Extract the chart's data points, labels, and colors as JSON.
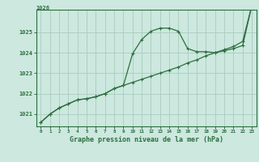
{
  "bg_color": "#cce8df",
  "grid_color": "#aaccbf",
  "line_color": "#2d6e3e",
  "title": "Graphe pression niveau de la mer (hPa)",
  "hours": [
    0,
    1,
    2,
    3,
    4,
    5,
    6,
    7,
    8,
    9,
    10,
    11,
    12,
    13,
    14,
    15,
    16,
    17,
    18,
    19,
    20,
    21,
    22,
    23
  ],
  "series1": [
    1020.6,
    1021.0,
    1021.3,
    1021.5,
    1021.7,
    1021.75,
    1021.85,
    1022.0,
    1022.25,
    1022.4,
    1023.95,
    1024.65,
    1025.05,
    1025.2,
    1025.2,
    1025.05,
    1024.2,
    1024.05,
    1024.05,
    1024.0,
    1024.1,
    1024.2,
    1024.35,
    1026.3
  ],
  "series2": [
    1020.6,
    1021.0,
    1021.3,
    1021.5,
    1021.7,
    1021.75,
    1021.85,
    1022.0,
    1022.25,
    1022.4,
    1022.55,
    1022.7,
    1022.85,
    1023.0,
    1023.15,
    1023.3,
    1023.5,
    1023.65,
    1023.85,
    1024.0,
    1024.15,
    1024.3,
    1024.55,
    1026.3
  ],
  "ylim_min": 1020.4,
  "ylim_max": 1026.1,
  "yticks": [
    1021,
    1022,
    1023,
    1024,
    1025
  ],
  "ytick_extra": "1026",
  "xlim_min": -0.5,
  "xlim_max": 23.5
}
